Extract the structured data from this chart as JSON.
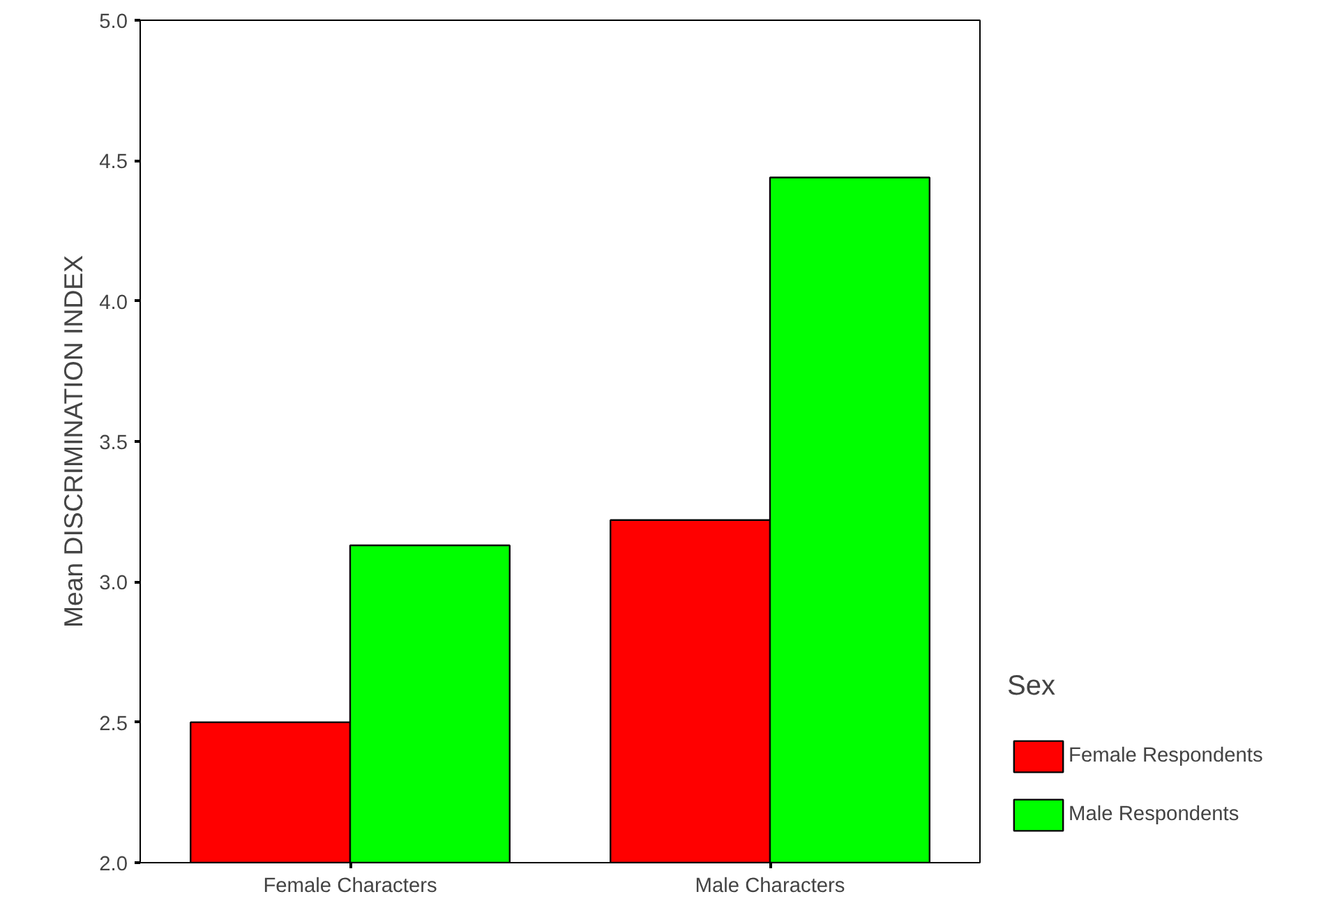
{
  "chart_data": {
    "type": "bar",
    "ylabel": "Mean DISCRIMINATION INDEX",
    "legend_title": "Sex",
    "categories": [
      "Female Characters",
      "Male Characters"
    ],
    "series": [
      {
        "name": "Female Respondents",
        "color": "#ff0000",
        "values": [
          2.5,
          3.22
        ]
      },
      {
        "name": "Male Respondents",
        "color": "#00ff00",
        "values": [
          3.13,
          4.44
        ]
      }
    ],
    "ylim": [
      2,
      5
    ],
    "yticks": [
      {
        "value": 2,
        "label": "2.0"
      },
      {
        "value": 2.5,
        "label": "2.5"
      },
      {
        "value": 3,
        "label": "3.0"
      },
      {
        "value": 3.5,
        "label": "3.5"
      },
      {
        "value": 4,
        "label": "4.0"
      },
      {
        "value": 4.5,
        "label": "4.5"
      },
      {
        "value": 5,
        "label": "5.0"
      }
    ],
    "grid": false,
    "legend": "right"
  }
}
